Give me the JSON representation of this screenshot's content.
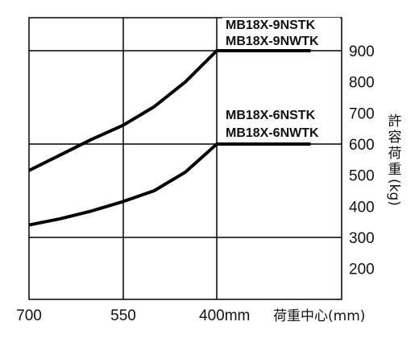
{
  "chart_data": {
    "type": "line",
    "xlabel": "荷重中心(mm)",
    "ylabel": [
      "許",
      "容",
      "荷",
      "重",
      "(kg)"
    ],
    "x_ticks": [
      "700",
      "550",
      "400mm"
    ],
    "y_ticks": [
      "900",
      "800",
      "700",
      "600",
      "500",
      "400",
      "300",
      "200"
    ],
    "xlim": [
      700,
      250
    ],
    "ylim": [
      100,
      1000
    ],
    "grid": true,
    "series": [
      {
        "name": "MB18X-9NSTK / MB18X-9NWTK",
        "label_lines": [
          "MB18X-9NSTK",
          "MB18X-9NWTK"
        ],
        "x": [
          700,
          650,
          600,
          550,
          500,
          450,
          400,
          250
        ],
        "y": [
          515,
          565,
          615,
          660,
          720,
          800,
          900,
          900
        ]
      },
      {
        "name": "MB18X-6NSTK / MB18X-6NWTK",
        "label_lines": [
          "MB18X-6NSTK",
          "MB18X-6NWTK"
        ],
        "x": [
          700,
          650,
          600,
          550,
          500,
          450,
          400,
          250
        ],
        "y": [
          340,
          360,
          385,
          415,
          450,
          510,
          600,
          600
        ]
      }
    ]
  }
}
